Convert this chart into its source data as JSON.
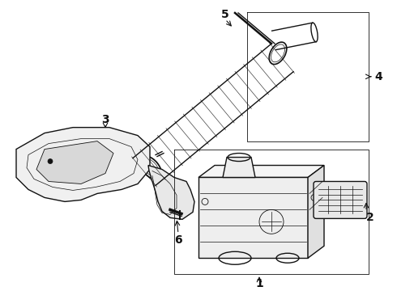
{
  "bg_color": "#ffffff",
  "line_color": "#111111",
  "fig_width": 4.9,
  "fig_height": 3.6,
  "dpi": 100
}
